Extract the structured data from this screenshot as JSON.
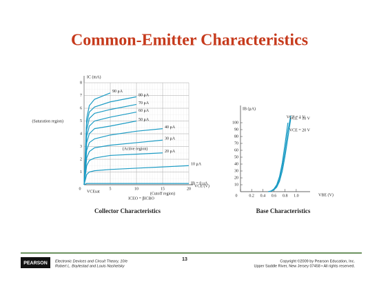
{
  "slide": {
    "title": "Common-Emitter Characteristics",
    "footer": {
      "book": "Electronic Devices and Circuit Theory, 10/e",
      "authors": "Robert L. Boylestad and Louis Nashelsky",
      "page": "13",
      "logo": "PEARSON",
      "copyright": "Copyright ©2009 by Pearson Education, Inc.",
      "address": "Upper Saddle River, New Jersey 07458 • All rights reserved."
    }
  },
  "chart_data": [
    {
      "type": "line",
      "title": "Collector Characteristics",
      "xlabel": "VCE (V)",
      "ylabel": "IC (mA)",
      "annotations": [
        "(Saturation region)",
        "(Active region)",
        "(Cutoff region)",
        "ICEO = βICBO",
        "VCEsat"
      ],
      "x": [
        0,
        0.5,
        1,
        2,
        5,
        10,
        15,
        20
      ],
      "xlim": [
        0,
        20
      ],
      "xticks": [
        0,
        5,
        10,
        15,
        20
      ],
      "ylim": [
        0,
        8
      ],
      "yticks": [
        1,
        2,
        3,
        4,
        5,
        6,
        7,
        8
      ],
      "grid": true,
      "series": [
        {
          "name": "90 μA",
          "color": "#1b9bc4",
          "values": [
            0,
            5.2,
            6.2,
            6.7,
            7.2,
            null,
            null,
            null
          ]
        },
        {
          "name": "80 μA",
          "color": "#1b9bc4",
          "values": [
            0,
            4.8,
            5.7,
            6.1,
            6.5,
            6.9,
            null,
            null
          ]
        },
        {
          "name": "70 μA",
          "color": "#1b9bc4",
          "values": [
            0,
            4.3,
            5.2,
            5.6,
            5.9,
            6.3,
            null,
            null
          ]
        },
        {
          "name": "60 μA",
          "color": "#1b9bc4",
          "values": [
            0,
            3.8,
            4.6,
            5.0,
            5.3,
            5.7,
            null,
            null
          ]
        },
        {
          "name": "50 μA",
          "color": "#1b9bc4",
          "values": [
            0,
            3.3,
            4.0,
            4.4,
            4.6,
            5.0,
            null,
            null
          ]
        },
        {
          "name": "40 μA",
          "color": "#1b9bc4",
          "values": [
            0,
            2.7,
            3.3,
            3.6,
            3.9,
            4.2,
            4.4,
            null
          ]
        },
        {
          "name": "30 μA",
          "color": "#1b9bc4",
          "values": [
            0,
            2.1,
            2.6,
            2.9,
            3.1,
            3.3,
            3.5,
            null
          ]
        },
        {
          "name": "20 μA",
          "color": "#1b9bc4",
          "values": [
            0,
            1.5,
            1.9,
            2.1,
            2.3,
            2.4,
            2.5,
            null
          ]
        },
        {
          "name": "10 μA",
          "color": "#1b9bc4",
          "values": [
            0,
            0.8,
            1.0,
            1.1,
            1.2,
            1.3,
            1.4,
            1.5
          ]
        },
        {
          "name": "IB = 0 μA",
          "color": "#1b9bc4",
          "values": [
            0,
            0.1,
            0.1,
            0.1,
            0.1,
            0.1,
            0.1,
            0.1
          ]
        }
      ]
    },
    {
      "type": "line",
      "title": "Base Characteristics",
      "xlabel": "VBE (V)",
      "ylabel": "IB (μA)",
      "x": [
        0.5,
        0.55,
        0.6,
        0.65,
        0.7,
        0.75,
        0.8,
        0.85,
        0.9
      ],
      "xlim": [
        0,
        1.1
      ],
      "xticks": [
        0,
        0.2,
        0.4,
        0.6,
        0.8,
        {
          "value": 1,
          "label": "1.0"
        }
      ],
      "ylim": [
        0,
        115
      ],
      "yticks": [
        10,
        20,
        30,
        40,
        50,
        60,
        70,
        80,
        90,
        100
      ],
      "grid": false,
      "series": [
        {
          "name": "VCE = 1 V",
          "color": "#1b9bc4",
          "values": [
            0,
            1,
            4,
            10,
            22,
            42,
            70,
            100,
            null
          ]
        },
        {
          "name": "VCE = 10 V",
          "color": "#1b9bc4",
          "values": [
            0,
            0.8,
            3,
            8,
            18,
            36,
            60,
            88,
            110
          ]
        },
        {
          "name": "VCE = 20 V",
          "color": "#1b9bc4",
          "values": [
            0,
            0.6,
            2.5,
            6.5,
            15,
            30,
            52,
            78,
            105
          ]
        }
      ]
    }
  ]
}
